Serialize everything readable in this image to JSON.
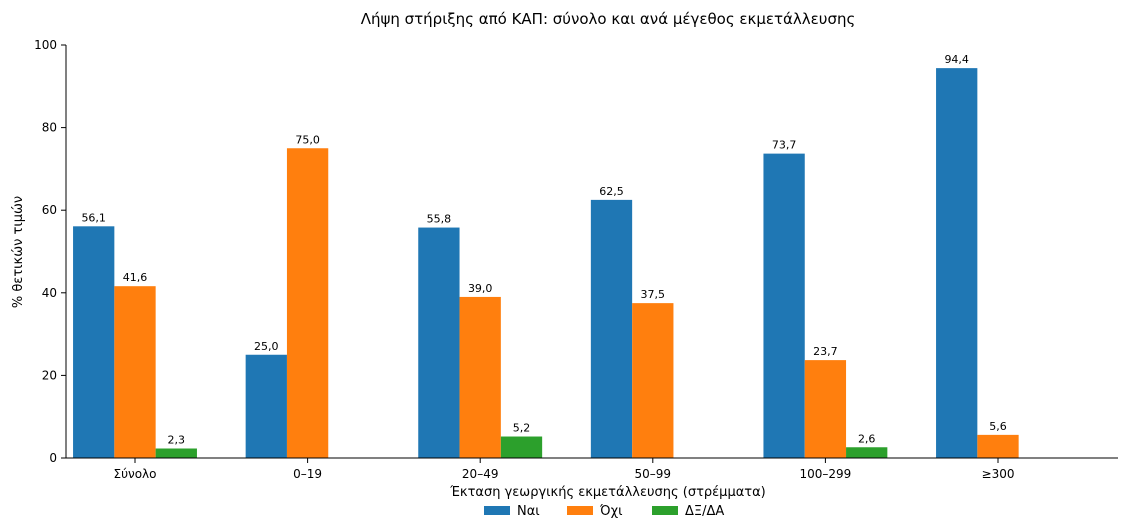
{
  "chart_data": {
    "type": "bar",
    "title": "Λήψη στήριξης από ΚΑΠ: σύνολο και ανά μέγεθος εκμετάλλευσης",
    "xlabel": "Έκταση γεωργικής εκμετάλλευσης (στρέμματα)",
    "ylabel": "% θετικών τιμών",
    "ylim": [
      0,
      100
    ],
    "yticks": [
      0,
      20,
      40,
      60,
      80,
      100
    ],
    "categories": [
      "Σύνολο",
      "0–19",
      "20–49",
      "50–99",
      "100–299",
      "≥300"
    ],
    "series": [
      {
        "name": "Ναι",
        "color": "#1f77b4",
        "values": [
          56.1,
          25.0,
          55.8,
          62.5,
          73.7,
          94.4
        ],
        "labels": [
          "56,1",
          "25,0",
          "55,8",
          "62,5",
          "73,7",
          "94,4"
        ]
      },
      {
        "name": "Όχι",
        "color": "#ff7f0e",
        "values": [
          41.6,
          75.0,
          39.0,
          37.5,
          23.7,
          5.6
        ],
        "labels": [
          "41,6",
          "75,0",
          "39,0",
          "37,5",
          "23,7",
          "5,6"
        ]
      },
      {
        "name": "ΔΞ/ΔΑ",
        "color": "#2ca02c",
        "values": [
          2.3,
          null,
          5.2,
          null,
          2.6,
          null
        ],
        "labels": [
          "2,3",
          null,
          "5,2",
          null,
          "2,6",
          null
        ]
      }
    ],
    "legend_position": "bottom-center",
    "grid": false
  }
}
